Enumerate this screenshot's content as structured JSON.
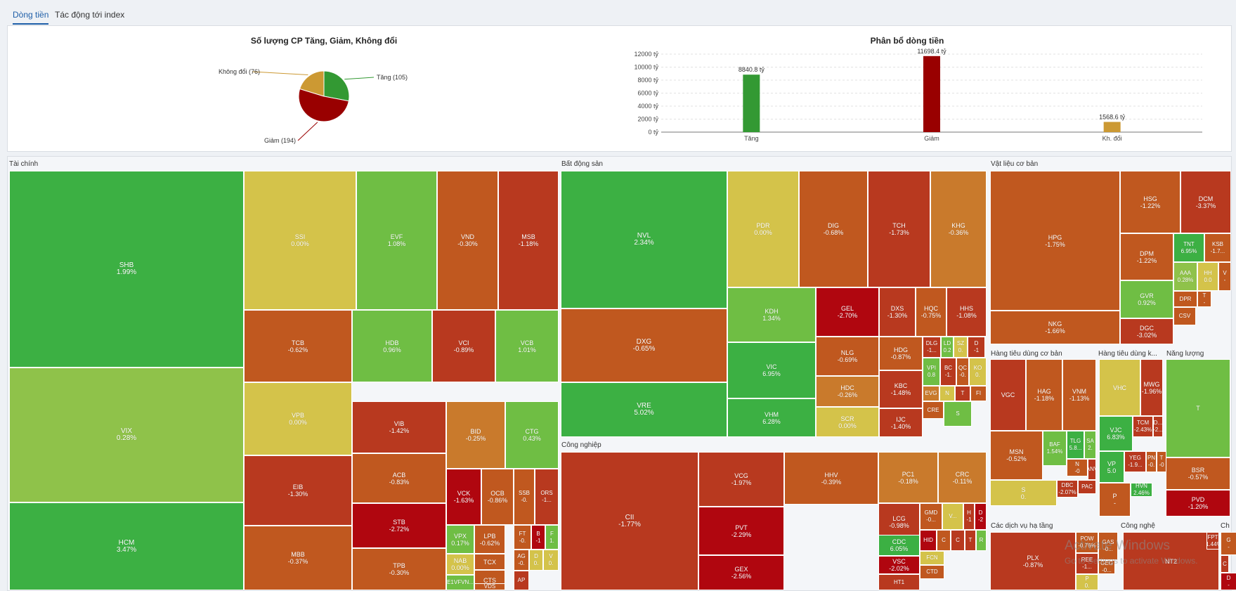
{
  "tabs": [
    {
      "label": "Dòng tiền"
    },
    {
      "label": "Tác động tới index"
    }
  ],
  "colors": {
    "up_strong": "#3cb043",
    "up": "#6fbe44",
    "up_light": "#8fc24a",
    "flat": "#d4c34a",
    "down_light": "#c97a2c",
    "down": "#c0581f",
    "down_mid": "#b8391f",
    "down_strong": "#b0060f",
    "pie_up": "#339933",
    "pie_down": "#990000",
    "pie_flat": "#cc9933"
  },
  "pie": {
    "title": "Số lượng CP Tăng, Giảm, Không đổi",
    "slices": [
      {
        "label": "Tăng (105)",
        "value": 105,
        "color": "#339933"
      },
      {
        "label": "Giảm (194)",
        "value": 194,
        "color": "#990000"
      },
      {
        "label": "Không đổi (76)",
        "value": 76,
        "color": "#cc9933"
      }
    ]
  },
  "chart_data": {
    "type": "bar",
    "title": "Phân bổ dòng tiền",
    "categories": [
      "Tăng",
      "Giảm",
      "Kh. đổi"
    ],
    "values": [
      8840.8,
      11698.4,
      1568.6
    ],
    "value_labels": [
      "8840.8 tỷ",
      "11698.4 tỷ",
      "1568.6 tỷ"
    ],
    "colors": [
      "#339933",
      "#990000",
      "#cc9933"
    ],
    "ylim": [
      0,
      12000
    ],
    "yticks": [
      "0 tỷ",
      "2000 tỷ",
      "4000 tỷ",
      "6000 tỷ",
      "8000 tỷ",
      "10000 tỷ",
      "12000 tỷ"
    ],
    "xlabel": "",
    "ylabel": ""
  },
  "sections": [
    {
      "name": "Tài chính"
    },
    {
      "name": "Bất động sản"
    },
    {
      "name": "Vật liệu cơ bản"
    },
    {
      "name": "Công nghiệp"
    },
    {
      "name": "Hàng tiêu dùng cơ bản"
    },
    {
      "name": "Hàng tiêu dùng k..."
    },
    {
      "name": "Năng lượng"
    },
    {
      "name": "Các dịch vụ hạ tầng"
    },
    {
      "name": "Công nghệ"
    },
    {
      "name": "Ch"
    }
  ],
  "tiles": [
    {
      "sym": "SHB",
      "pct": "1.99%",
      "c": "up_strong"
    },
    {
      "sym": "VIX",
      "pct": "0.28%",
      "c": "up_light"
    },
    {
      "sym": "HCM",
      "pct": "3.47%",
      "c": "up_strong"
    },
    {
      "sym": "SSI",
      "pct": "0.00%",
      "c": "flat"
    },
    {
      "sym": "EVF",
      "pct": "1.08%",
      "c": "up"
    },
    {
      "sym": "VND",
      "pct": "-0.30%",
      "c": "down"
    },
    {
      "sym": "MSB",
      "pct": "-1.18%",
      "c": "down_mid"
    },
    {
      "sym": "TCB",
      "pct": "-0.62%",
      "c": "down"
    },
    {
      "sym": "HDB",
      "pct": "0.96%",
      "c": "up"
    },
    {
      "sym": "VCI",
      "pct": "-0.89%",
      "c": "down_mid"
    },
    {
      "sym": "VCB",
      "pct": "1.01%",
      "c": "up"
    },
    {
      "sym": "VPB",
      "pct": "0.00%",
      "c": "flat"
    },
    {
      "sym": "EIB",
      "pct": "-1.30%",
      "c": "down_mid"
    },
    {
      "sym": "MBB",
      "pct": "-0.37%",
      "c": "down"
    },
    {
      "sym": "VIB",
      "pct": "-1.42%",
      "c": "down_mid"
    },
    {
      "sym": "BID",
      "pct": "-0.25%",
      "c": "down_light"
    },
    {
      "sym": "CTG",
      "pct": "0.43%",
      "c": "up"
    },
    {
      "sym": "ACB",
      "pct": "-0.83%",
      "c": "down"
    },
    {
      "sym": "STB",
      "pct": "-2.72%",
      "c": "down_strong"
    },
    {
      "sym": "TPB",
      "pct": "-0.30%",
      "c": "down"
    },
    {
      "sym": "VCK",
      "pct": "-1.63%",
      "c": "down_strong"
    },
    {
      "sym": "OCB",
      "pct": "-0.86%",
      "c": "down"
    },
    {
      "sym": "SSB",
      "pct": "-0.",
      "c": "down"
    },
    {
      "sym": "ORS",
      "pct": "-1...",
      "c": "down_mid"
    },
    {
      "sym": "VPX",
      "pct": "0.17%",
      "c": "up"
    },
    {
      "sym": "LPB",
      "pct": "-0.62%",
      "c": "down"
    },
    {
      "sym": "FT",
      "pct": "-0.",
      "c": "down"
    },
    {
      "sym": "B",
      "pct": "-1",
      "c": "down_strong"
    },
    {
      "sym": "F",
      "pct": "1.",
      "c": "up"
    },
    {
      "sym": "TCX",
      "pct": "",
      "c": "down"
    },
    {
      "sym": "NAB",
      "pct": "0.00%",
      "c": "flat"
    },
    {
      "sym": "AG",
      "pct": "-0.",
      "c": "down"
    },
    {
      "sym": "D",
      "pct": "0.",
      "c": "flat"
    },
    {
      "sym": "V",
      "pct": "0.",
      "c": "flat"
    },
    {
      "sym": "CTS",
      "pct": "",
      "c": "down"
    },
    {
      "sym": "AP",
      "pct": "",
      "c": "down_mid"
    },
    {
      "sym": "E1VFVN...",
      "pct": "",
      "c": "up"
    },
    {
      "sym": "VDS",
      "pct": "",
      "c": "down"
    },
    {
      "sym": "NVL",
      "pct": "2.34%",
      "c": "up_strong"
    },
    {
      "sym": "PDR",
      "pct": "0.00%",
      "c": "flat"
    },
    {
      "sym": "DIG",
      "pct": "-0.68%",
      "c": "down"
    },
    {
      "sym": "TCH",
      "pct": "-1.73%",
      "c": "down_mid"
    },
    {
      "sym": "KHG",
      "pct": "-0.36%",
      "c": "down_light"
    },
    {
      "sym": "DXG",
      "pct": "-0.65%",
      "c": "down"
    },
    {
      "sym": "KDH",
      "pct": "1.34%",
      "c": "up"
    },
    {
      "sym": "GEL",
      "pct": "-2.70%",
      "c": "down_strong"
    },
    {
      "sym": "DXS",
      "pct": "-1.30%",
      "c": "down_mid"
    },
    {
      "sym": "HQC",
      "pct": "-0.75%",
      "c": "down"
    },
    {
      "sym": "HHS",
      "pct": "-1.08%",
      "c": "down_mid"
    },
    {
      "sym": "VRE",
      "pct": "5.02%",
      "c": "up_strong"
    },
    {
      "sym": "VIC",
      "pct": "6.95%",
      "c": "up_strong"
    },
    {
      "sym": "NLG",
      "pct": "-0.69%",
      "c": "down"
    },
    {
      "sym": "HDG",
      "pct": "-0.87%",
      "c": "down"
    },
    {
      "sym": "DLG",
      "pct": "-1...",
      "c": "down_mid"
    },
    {
      "sym": "LD",
      "pct": "0.2",
      "c": "up"
    },
    {
      "sym": "SZ",
      "pct": "0.",
      "c": "flat"
    },
    {
      "sym": "D",
      "pct": "-1",
      "c": "down_mid"
    },
    {
      "sym": "VPI",
      "pct": "0.8",
      "c": "up"
    },
    {
      "sym": "BC",
      "pct": "-1.",
      "c": "down_mid"
    },
    {
      "sym": "QC",
      "pct": "-0.",
      "c": "down"
    },
    {
      "sym": "KO",
      "pct": "0.",
      "c": "flat"
    },
    {
      "sym": "HDC",
      "pct": "-0.26%",
      "c": "down_light"
    },
    {
      "sym": "KBC",
      "pct": "-1.48%",
      "c": "down_mid"
    },
    {
      "sym": "EVG",
      "pct": "",
      "c": "down_light"
    },
    {
      "sym": "N",
      "pct": "",
      "c": "flat"
    },
    {
      "sym": "T",
      "pct": "",
      "c": "down_mid"
    },
    {
      "sym": "FI",
      "pct": "",
      "c": "down"
    },
    {
      "sym": "VHM",
      "pct": "6.28%",
      "c": "up_strong"
    },
    {
      "sym": "SCR",
      "pct": "0.00%",
      "c": "flat"
    },
    {
      "sym": "IJC",
      "pct": "-1.40%",
      "c": "down_mid"
    },
    {
      "sym": "CRE",
      "pct": "",
      "c": "down"
    },
    {
      "sym": "S",
      "pct": "",
      "c": "up"
    },
    {
      "sym": "HPG",
      "pct": "-1.75%",
      "c": "down"
    },
    {
      "sym": "HSG",
      "pct": "-1.22%",
      "c": "down"
    },
    {
      "sym": "DCM",
      "pct": "-3.37%",
      "c": "down_mid"
    },
    {
      "sym": "TNT",
      "pct": "6.95%",
      "c": "up_strong"
    },
    {
      "sym": "KSB",
      "pct": "-1.7...",
      "c": "down"
    },
    {
      "sym": "DPM",
      "pct": "-1.22%",
      "c": "down"
    },
    {
      "sym": "AAA",
      "pct": "0.28%",
      "c": "up_light"
    },
    {
      "sym": "HH",
      "pct": "0.0",
      "c": "flat"
    },
    {
      "sym": "V",
      "pct": "-",
      "c": "down"
    },
    {
      "sym": "GVR",
      "pct": "0.92%",
      "c": "up"
    },
    {
      "sym": "DPR",
      "pct": "",
      "c": "down"
    },
    {
      "sym": "T",
      "pct": "-",
      "c": "down"
    },
    {
      "sym": "NKG",
      "pct": "-1.66%",
      "c": "down"
    },
    {
      "sym": "DGC",
      "pct": "-3.02%",
      "c": "down_mid"
    },
    {
      "sym": "CSV",
      "pct": "",
      "c": "down"
    },
    {
      "sym": "CII",
      "pct": "-1.77%",
      "c": "down_mid"
    },
    {
      "sym": "VCG",
      "pct": "-1.97%",
      "c": "down_mid"
    },
    {
      "sym": "HHV",
      "pct": "-0.39%",
      "c": "down"
    },
    {
      "sym": "PC1",
      "pct": "-0.18%",
      "c": "down_light"
    },
    {
      "sym": "CRC",
      "pct": "-0.11%",
      "c": "down_light"
    },
    {
      "sym": "LCG",
      "pct": "-0.98%",
      "c": "down_mid"
    },
    {
      "sym": "GMD",
      "pct": "-0...",
      "c": "down"
    },
    {
      "sym": "V...",
      "pct": "",
      "c": "flat"
    },
    {
      "sym": "H",
      "pct": "-1",
      "c": "down_mid"
    },
    {
      "sym": "D",
      "pct": "-2",
      "c": "down_strong"
    },
    {
      "sym": "PVT",
      "pct": "-2.29%",
      "c": "down_strong"
    },
    {
      "sym": "CDC",
      "pct": "6.05%",
      "c": "up_strong"
    },
    {
      "sym": "HID",
      "pct": "",
      "c": "down_strong"
    },
    {
      "sym": "C",
      "pct": "",
      "c": "down"
    },
    {
      "sym": "C",
      "pct": "",
      "c": "down_mid"
    },
    {
      "sym": "T",
      "pct": "",
      "c": "down_mid"
    },
    {
      "sym": "R",
      "pct": "",
      "c": "up"
    },
    {
      "sym": "GEX",
      "pct": "-2.56%",
      "c": "down_strong"
    },
    {
      "sym": "VSC",
      "pct": "-2.02%",
      "c": "down_strong"
    },
    {
      "sym": "FCN",
      "pct": "",
      "c": "flat"
    },
    {
      "sym": "CTD",
      "pct": "",
      "c": "down"
    },
    {
      "sym": "HT1",
      "pct": "",
      "c": "down_mid"
    },
    {
      "sym": "VGC",
      "pct": "",
      "c": "down_mid"
    },
    {
      "sym": "HAG",
      "pct": "-1.18%",
      "c": "down"
    },
    {
      "sym": "VNM",
      "pct": "-1.13%",
      "c": "down"
    },
    {
      "sym": "MSN",
      "pct": "-0.52%",
      "c": "down"
    },
    {
      "sym": "BAF",
      "pct": "1.54%",
      "c": "up"
    },
    {
      "sym": "TLG",
      "pct": "5.8...",
      "c": "up_strong"
    },
    {
      "sym": "SA",
      "pct": "2.",
      "c": "up"
    },
    {
      "sym": "N",
      "pct": "-0",
      "c": "down"
    },
    {
      "sym": "ANV",
      "pct": "",
      "c": "down_mid"
    },
    {
      "sym": "S",
      "pct": "0.",
      "c": "flat"
    },
    {
      "sym": "DBC",
      "pct": "-2.07%",
      "c": "down_mid"
    },
    {
      "sym": "PAC",
      "pct": "",
      "c": "down_mid"
    },
    {
      "sym": "VHC",
      "pct": "",
      "c": "flat"
    },
    {
      "sym": "MWG",
      "pct": "-1.96%",
      "c": "down_mid"
    },
    {
      "sym": "VJC",
      "pct": "6.83%",
      "c": "up_strong"
    },
    {
      "sym": "TCM",
      "pct": "-2.43%",
      "c": "down_mid"
    },
    {
      "sym": "D...",
      "pct": "-2...",
      "c": "down_mid"
    },
    {
      "sym": "VP",
      "pct": "5.0",
      "c": "up_strong"
    },
    {
      "sym": "YEG",
      "pct": "-1.9...",
      "c": "down_mid"
    },
    {
      "sym": "PN",
      "pct": "-0.",
      "c": "down"
    },
    {
      "sym": "T",
      "pct": "-0",
      "c": "down"
    },
    {
      "sym": "P",
      "pct": "-",
      "c": "down"
    },
    {
      "sym": "HVN",
      "pct": "2.46%",
      "c": "up_strong"
    },
    {
      "sym": "T",
      "pct": "",
      "c": "up"
    },
    {
      "sym": "BSR",
      "pct": "-0.57%",
      "c": "down"
    },
    {
      "sym": "PVD",
      "pct": "-1.20%",
      "c": "down_strong"
    },
    {
      "sym": "PLX",
      "pct": "-0.87%",
      "c": "down_mid"
    },
    {
      "sym": "POW",
      "pct": "-0.76%",
      "c": "down"
    },
    {
      "sym": "GAS",
      "pct": "-0...",
      "c": "down"
    },
    {
      "sym": "REE",
      "pct": "-1...",
      "c": "down_mid"
    },
    {
      "sym": "GEG",
      "pct": "-0...",
      "c": "down"
    },
    {
      "sym": "P",
      "pct": "0.",
      "c": "flat"
    },
    {
      "sym": "NT2",
      "pct": "",
      "c": "down_mid"
    },
    {
      "sym": "FPT",
      "pct": "-1.44%",
      "c": "down_mid"
    },
    {
      "sym": "G",
      "pct": "-",
      "c": "down"
    },
    {
      "sym": "C",
      "pct": "",
      "c": "down_mid"
    },
    {
      "sym": "D",
      "pct": "-",
      "c": "down_strong"
    },
    {
      "sym": "E",
      "pct": "",
      "c": "down_strong"
    }
  ],
  "watermark": {
    "line1": "Activate Windows",
    "line2": "Go to Settings to activate Windows."
  }
}
